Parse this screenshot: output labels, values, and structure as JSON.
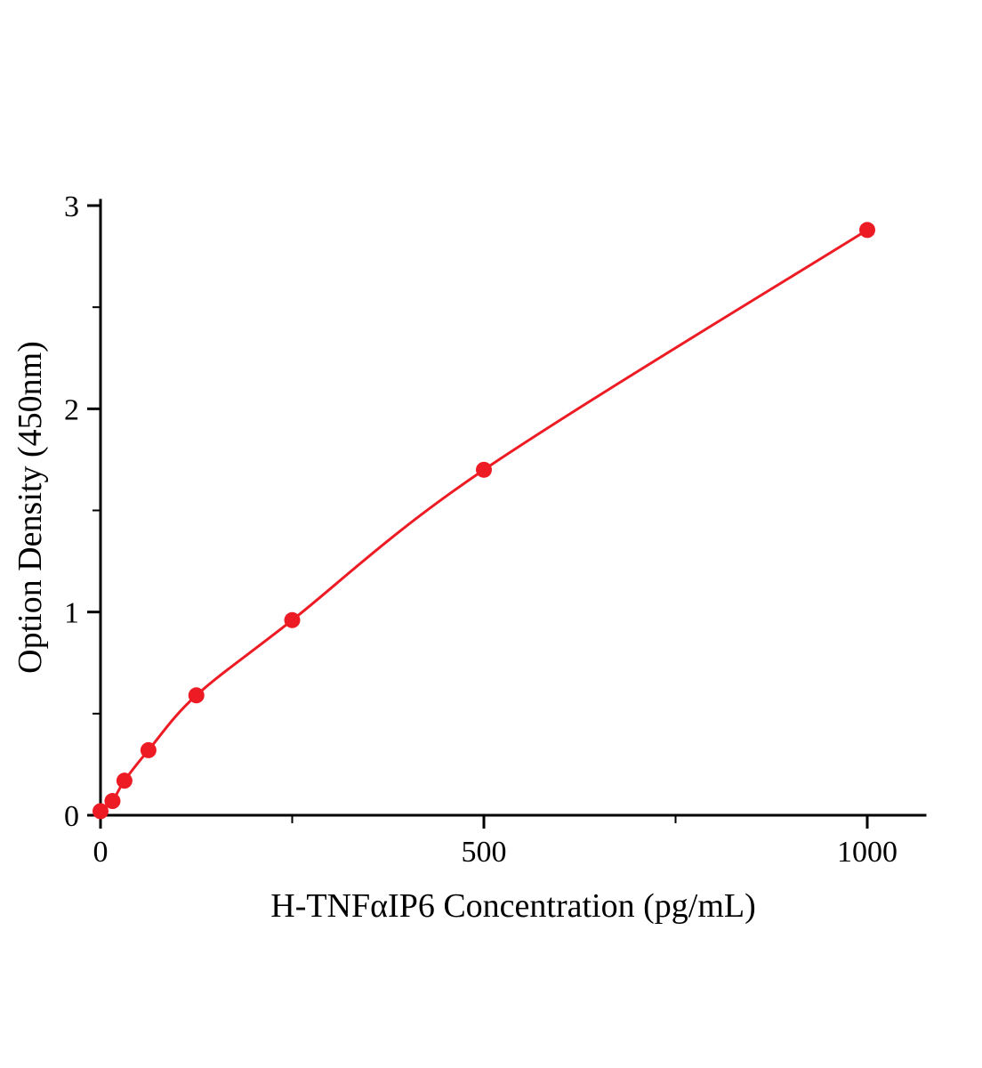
{
  "figure": {
    "background": "#ffffff"
  },
  "chart_data": {
    "type": "line",
    "title": "",
    "xlabel": "H-TNFαIP6 Concentration (pg/mL)",
    "ylabel": "Option Density (450nm)",
    "series_color": "#ed1c24",
    "axis_color": "#000000",
    "grid": false,
    "legend_position": "none",
    "xlim": [
      0,
      1075
    ],
    "ylim": [
      0,
      3.03
    ],
    "x_major_ticks": [
      0,
      500,
      1000
    ],
    "x_minor_ticks": [
      250,
      750
    ],
    "y_major_ticks": [
      0,
      1,
      2,
      3
    ],
    "y_minor_ticks": [
      0.5,
      1.5,
      2.5
    ],
    "marker": "circle",
    "marker_radius": 9,
    "line_width": 3,
    "points": [
      {
        "x": 0,
        "y": 0.02
      },
      {
        "x": 15.6,
        "y": 0.07
      },
      {
        "x": 31.2,
        "y": 0.17
      },
      {
        "x": 62.5,
        "y": 0.32
      },
      {
        "x": 125,
        "y": 0.59
      },
      {
        "x": 250,
        "y": 0.96
      },
      {
        "x": 500,
        "y": 1.7
      },
      {
        "x": 1000,
        "y": 2.88
      }
    ]
  }
}
